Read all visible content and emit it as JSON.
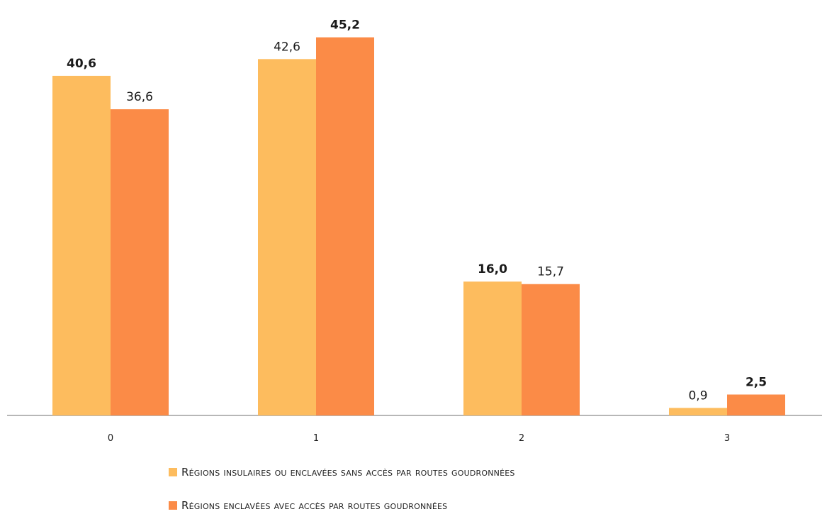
{
  "chart_data": {
    "type": "bar",
    "categories": [
      "0",
      "1",
      "2",
      "3"
    ],
    "series": [
      {
        "name": "Régions insulaires ou enclavées sans accès par routes goudronnées",
        "color": "#FDBC5E",
        "values": [
          40.6,
          42.6,
          16.0,
          0.9
        ],
        "value_labels": [
          "40,6",
          "42,6",
          "16,0",
          "0,9"
        ],
        "bold_labels": [
          true,
          false,
          true,
          false
        ]
      },
      {
        "name": "Régions enclavées avec accès par routes goudronnées",
        "color": "#FB8B47",
        "values": [
          36.6,
          45.2,
          15.7,
          2.5
        ],
        "value_labels": [
          "36,6",
          "45,2",
          "15,7",
          "2,5"
        ],
        "bold_labels": [
          false,
          true,
          false,
          true
        ]
      }
    ],
    "ylim": [
      0,
      50
    ],
    "grid": false,
    "legend_position": "bottom"
  }
}
